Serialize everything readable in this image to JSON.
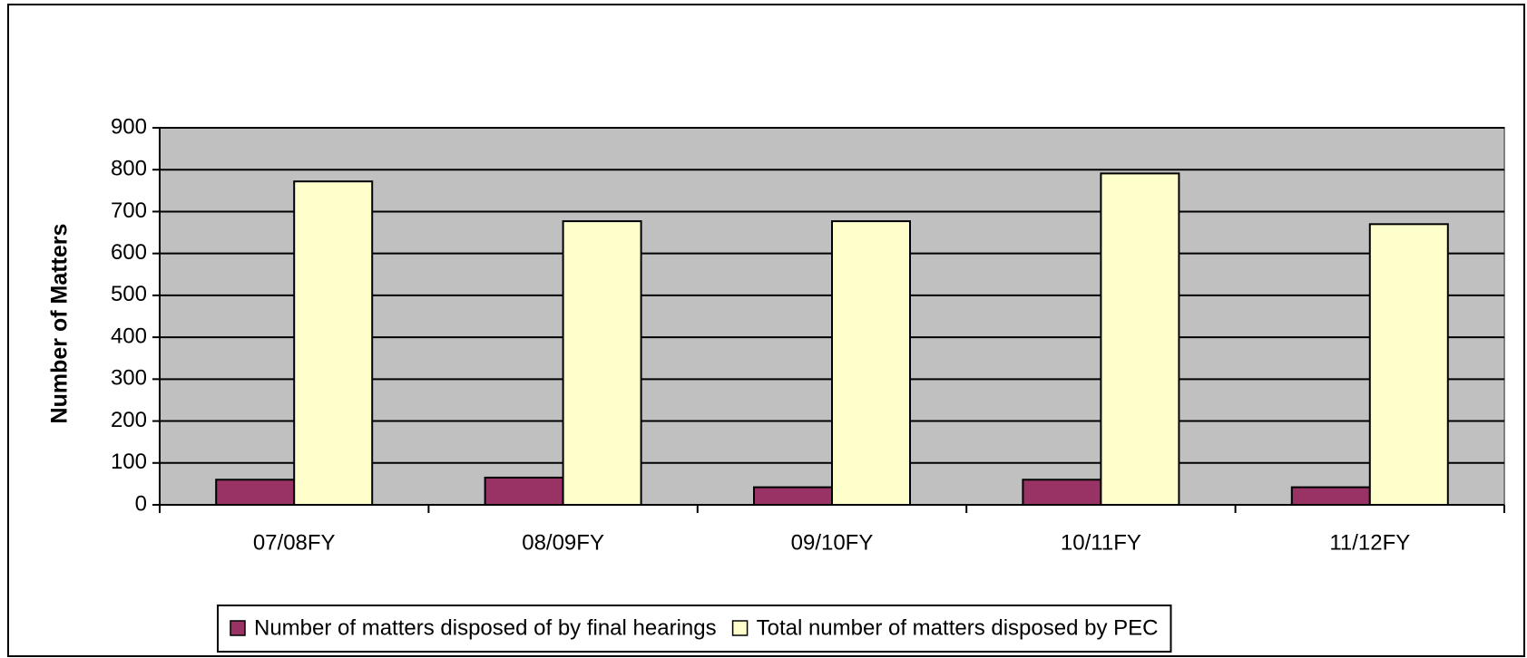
{
  "chart_data": {
    "type": "bar",
    "categories": [
      "07/08FY",
      "08/09FY",
      "09/10FY",
      "10/11FY",
      "11/12FY"
    ],
    "series": [
      {
        "name": "Number of matters disposed of by final hearings",
        "color": "#993366",
        "values": [
          60,
          65,
          42,
          60,
          42
        ]
      },
      {
        "name": "Total number of matters disposed by PEC",
        "color": "#ffffcc",
        "values": [
          772,
          677,
          677,
          791,
          670
        ]
      }
    ],
    "y_label": "Number of Matters",
    "ylim": [
      0,
      900
    ],
    "yticks": [
      0,
      100,
      200,
      300,
      400,
      500,
      600,
      700,
      800,
      900
    ],
    "grid": true,
    "legend": "bottom"
  }
}
